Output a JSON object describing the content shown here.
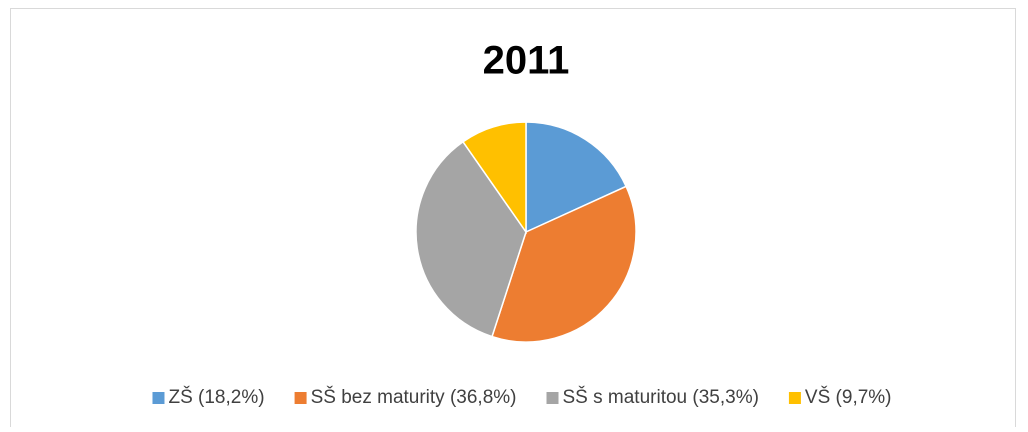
{
  "chart_data": {
    "type": "pie",
    "title": "2011",
    "categories": [
      "ZŠ (18,2%)",
      "SŠ bez maturity (36,8%)",
      "SŠ s maturitou (35,3%)",
      "VŠ (9,7%)"
    ],
    "values": [
      18.2,
      36.8,
      35.3,
      9.7
    ],
    "colors": [
      "#5b9bd5",
      "#ed7d31",
      "#a5a5a5",
      "#ffc000"
    ],
    "legend": "bottom"
  }
}
